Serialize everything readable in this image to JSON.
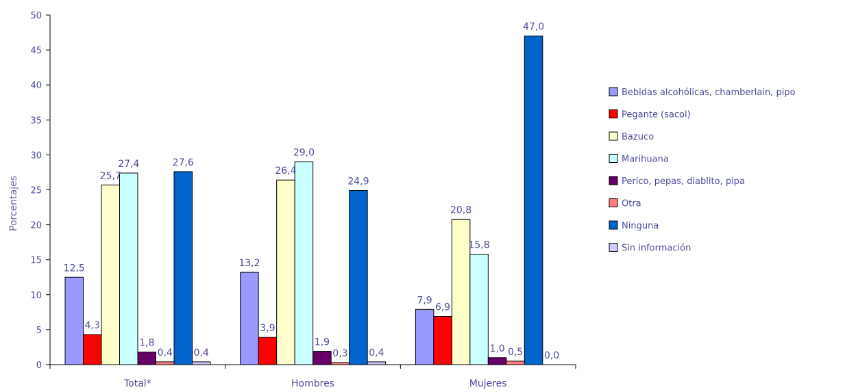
{
  "chart_data": {
    "type": "bar",
    "ylabel": "Porcentajes",
    "xlabel": "",
    "ylim": [
      0,
      50
    ],
    "yticks": [
      0,
      5,
      10,
      15,
      20,
      25,
      30,
      35,
      40,
      45,
      50
    ],
    "categories": [
      "Total*",
      "Hombres",
      "Mujeres"
    ],
    "legend_position": "right",
    "grid": false,
    "series": [
      {
        "name": "Bebidas alcohólicas, chamberlain, pipo",
        "color": "#9999ff",
        "values": [
          12.5,
          13.2,
          7.9
        ],
        "labels": [
          "12,5",
          "13,2",
          "7,9"
        ]
      },
      {
        "name": "Pegante (sacol)",
        "color": "#ff0000",
        "values": [
          4.3,
          3.9,
          6.9
        ],
        "labels": [
          "4,3",
          "3,9",
          "6,9"
        ]
      },
      {
        "name": "Bazuco",
        "color": "#ffffcc",
        "values": [
          25.7,
          26.4,
          20.8
        ],
        "labels": [
          "25,7",
          "26,4",
          "20,8"
        ]
      },
      {
        "name": "Marihuana",
        "color": "#ccffff",
        "values": [
          27.4,
          29.0,
          15.8
        ],
        "labels": [
          "27,4",
          "29,0",
          "15,8"
        ]
      },
      {
        "name": "Perico, pepas, diablito, pipa",
        "color": "#660066",
        "values": [
          1.8,
          1.9,
          1.0
        ],
        "labels": [
          "1,8",
          "1,9",
          "1,0"
        ]
      },
      {
        "name": "Otra",
        "color": "#ff8080",
        "values": [
          0.4,
          0.3,
          0.5
        ],
        "labels": [
          "0,4",
          "0,3",
          "0,5"
        ]
      },
      {
        "name": "Ninguna",
        "color": "#0066cc",
        "values": [
          27.6,
          24.9,
          47.0
        ],
        "labels": [
          "27,6",
          "24,9",
          "47,0"
        ]
      },
      {
        "name": "Sin información",
        "color": "#ccccff",
        "values": [
          0.4,
          0.4,
          0.0
        ],
        "labels": [
          "0,4",
          "0,4",
          "0,0"
        ]
      }
    ]
  }
}
